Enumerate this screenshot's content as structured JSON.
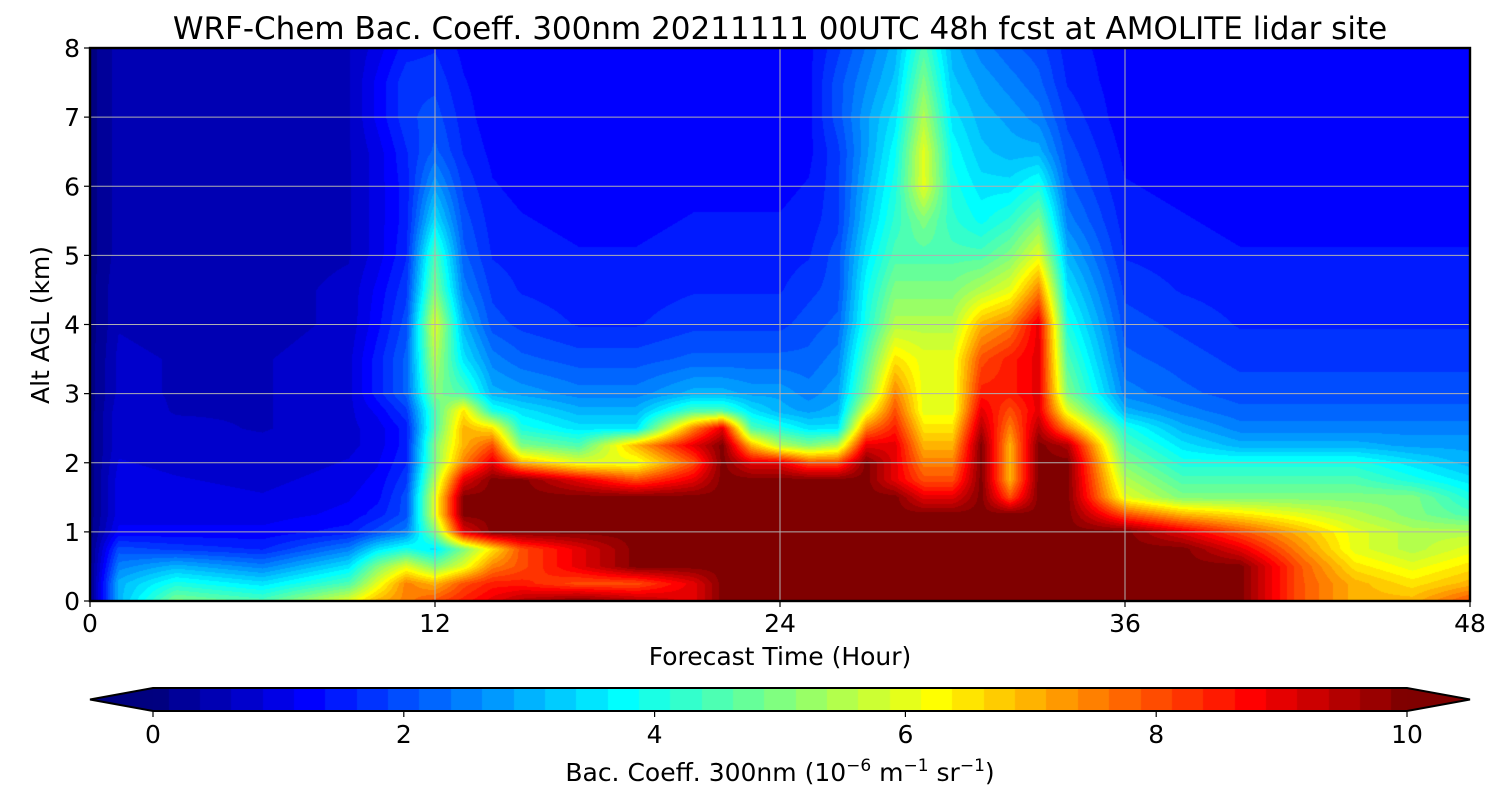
{
  "chart_data": {
    "type": "heatmap",
    "title": "WRF-Chem Bac. Coeff. 300nm  20211111 00UTC 48h fcst at AMOLITE lidar site",
    "xlabel": "Forecast Time (Hour)",
    "ylabel": "Alt AGL (km)",
    "xlim": [
      0,
      48
    ],
    "ylim": [
      0,
      8
    ],
    "xticks": [
      0,
      12,
      24,
      36,
      48
    ],
    "yticks": [
      0,
      1,
      2,
      3,
      4,
      5,
      6,
      7,
      8
    ],
    "grid": true,
    "colormap": "jet",
    "colorbar": {
      "orientation": "horizontal",
      "placement": "bottom",
      "extend": "both",
      "min": 0,
      "max": 10,
      "ticks": [
        0,
        2,
        4,
        6,
        8,
        10
      ],
      "label_main": "Bac. Coeff. 300nm  (10",
      "label_exp1": "−6",
      "label_mid": " m",
      "label_exp2": "−1",
      "label_mid2": " sr",
      "label_exp3": "−1",
      "label_end": ")"
    },
    "x": [
      0,
      1,
      3,
      6,
      9,
      10,
      11,
      12,
      13,
      14,
      15,
      17,
      19,
      21,
      22,
      23,
      24,
      25,
      26,
      27,
      28,
      29,
      30,
      31,
      32,
      33,
      34,
      36,
      38,
      40,
      42,
      44,
      46,
      48
    ],
    "y": [
      0,
      0.25,
      0.5,
      0.75,
      1,
      1.25,
      1.5,
      1.75,
      2,
      2.25,
      2.5,
      2.75,
      3,
      3.5,
      4,
      4.5,
      5,
      5.5,
      6,
      6.5,
      7,
      7.5,
      8
    ],
    "z": [
      [
        0,
        3,
        5,
        4.5,
        6,
        7,
        7.5,
        8,
        8.5,
        9,
        9.5,
        10,
        9.5,
        9,
        10,
        10,
        10,
        10,
        10,
        10,
        10,
        10,
        10,
        10,
        10,
        10,
        10,
        10,
        10,
        10,
        8,
        7,
        7,
        8
      ],
      [
        0,
        3,
        4,
        3.5,
        4.5,
        6,
        7.5,
        7,
        8,
        8.5,
        8.5,
        8,
        8,
        9,
        10,
        10,
        10,
        10,
        10,
        10,
        10,
        10,
        10,
        10,
        10,
        10,
        10,
        10,
        10,
        10,
        8,
        7,
        6.5,
        7
      ],
      [
        0,
        2.5,
        3,
        2.5,
        3.5,
        5,
        6,
        5,
        6,
        7.5,
        8,
        9,
        10,
        10,
        10,
        10,
        10,
        10,
        10,
        10,
        10,
        10,
        10,
        10,
        10,
        10,
        10,
        10,
        10,
        10,
        8,
        6.5,
        6,
        6.5
      ],
      [
        0,
        2,
        1.8,
        1.6,
        2.5,
        3.5,
        4,
        3.5,
        5,
        6.5,
        8,
        9,
        10,
        10,
        10,
        10,
        10,
        10,
        10,
        10,
        10,
        10,
        10,
        10,
        10,
        10,
        10,
        10,
        10,
        9,
        7.5,
        6,
        5.5,
        6
      ],
      [
        0,
        1.2,
        1.2,
        1.2,
        1.5,
        2,
        2.5,
        5,
        9,
        10,
        10,
        10,
        10,
        10,
        10,
        10,
        10,
        10,
        10,
        10,
        10,
        10,
        10,
        10,
        10,
        10,
        10,
        10,
        9,
        8,
        7,
        6,
        5.5,
        5.5
      ],
      [
        0,
        1,
        1,
        1,
        1.2,
        1.5,
        2,
        6,
        10,
        10,
        10,
        10,
        10,
        10,
        10,
        10,
        10,
        10,
        10,
        10,
        10,
        10,
        10,
        10,
        10,
        10,
        10,
        8,
        7,
        6.5,
        6,
        5.5,
        5,
        4.5
      ],
      [
        0,
        1,
        1,
        0.9,
        1.1,
        1.3,
        2,
        6,
        10,
        10,
        10,
        10,
        10,
        10,
        10,
        10,
        10,
        10,
        10,
        10,
        10,
        9,
        9,
        10,
        8,
        10,
        10,
        6,
        5,
        5,
        5,
        5,
        5,
        4
      ],
      [
        0,
        1,
        0.9,
        0.8,
        1,
        1.2,
        1.8,
        5.5,
        9,
        10,
        10,
        9,
        8,
        9,
        10,
        10,
        10,
        10,
        10,
        10,
        9,
        8,
        8,
        10,
        7,
        10,
        10,
        5.5,
        4.5,
        4.5,
        4.5,
        4.5,
        4,
        3.5
      ],
      [
        0,
        0.9,
        0.8,
        0.7,
        0.9,
        1.1,
        1.6,
        5,
        7.5,
        9,
        7,
        6,
        6,
        8,
        10,
        9,
        9,
        8,
        8,
        10,
        9,
        7.5,
        7.5,
        10,
        7,
        10,
        10,
        5,
        4,
        4,
        4,
        4,
        3.5,
        3
      ],
      [
        0,
        0.8,
        0.7,
        0.7,
        0.8,
        1,
        1.5,
        5,
        7,
        8,
        5,
        4.5,
        7,
        9,
        10,
        7,
        5.5,
        5,
        5.5,
        9,
        9,
        7,
        7,
        10,
        7,
        10,
        9.5,
        4.5,
        3.5,
        3,
        3,
        3,
        2.8,
        2.8
      ],
      [
        0,
        0.8,
        0.7,
        0.6,
        0.8,
        1,
        1.5,
        4.5,
        7,
        6.5,
        4,
        3.5,
        3.5,
        7.5,
        9,
        4.5,
        4,
        3.5,
        3.5,
        7.5,
        8.5,
        6.5,
        6.5,
        9.5,
        7.5,
        9.5,
        7.5,
        4,
        3,
        2.5,
        2.5,
        2.5,
        2.5,
        2.5
      ],
      [
        0,
        0.8,
        0.6,
        0.6,
        0.8,
        1.2,
        1.8,
        4.5,
        6.5,
        4,
        3.5,
        3,
        3,
        4.5,
        4.5,
        3.5,
        3,
        2.8,
        3,
        6,
        8,
        6,
        6,
        9,
        8,
        9,
        6,
        3,
        2.5,
        2.2,
        2.2,
        2.2,
        2.2,
        2.2
      ],
      [
        0,
        0.7,
        0.6,
        0.6,
        0.8,
        1.5,
        2.2,
        5,
        4.5,
        3,
        2.8,
        2.5,
        2.5,
        3,
        3,
        2.8,
        2.8,
        2.5,
        2.8,
        5,
        7.5,
        6,
        6,
        8.5,
        8.5,
        9,
        5,
        2.5,
        2.2,
        2,
        2,
        2,
        2,
        2
      ],
      [
        0,
        0.7,
        0.6,
        0.6,
        0.8,
        1.5,
        2.2,
        5.5,
        3.5,
        2.5,
        2.2,
        2,
        2,
        2.2,
        2.2,
        2.2,
        2.2,
        2.2,
        2.5,
        4.5,
        6.5,
        6,
        6,
        8,
        8.5,
        9,
        4.5,
        2.2,
        2,
        1.8,
        1.8,
        1.8,
        1.8,
        1.8
      ],
      [
        0,
        0.6,
        0.5,
        0.5,
        0.7,
        1.3,
        2,
        6,
        3,
        2,
        1.8,
        1.6,
        1.6,
        1.8,
        1.8,
        1.8,
        1.8,
        2,
        2.2,
        4,
        5.5,
        5.5,
        5.5,
        7,
        7.5,
        9,
        4,
        2,
        1.8,
        1.6,
        1.6,
        1.6,
        1.6,
        1.6
      ],
      [
        0,
        0.6,
        0.5,
        0.5,
        0.7,
        1.2,
        1.8,
        5,
        2.5,
        1.8,
        1.6,
        1.5,
        1.5,
        1.6,
        1.6,
        1.6,
        1.6,
        1.8,
        2,
        3.8,
        5,
        5,
        5,
        5.5,
        6,
        7.5,
        3.5,
        1.8,
        1.6,
        1.5,
        1.5,
        1.5,
        1.5,
        1.5
      ],
      [
        0,
        0.5,
        0.5,
        0.5,
        0.6,
        1,
        1.6,
        4.5,
        2.2,
        1.6,
        1.5,
        1.4,
        1.4,
        1.5,
        1.5,
        1.5,
        1.5,
        1.6,
        2,
        3.5,
        4.5,
        4.5,
        4.5,
        4.5,
        5,
        6,
        3,
        1.6,
        1.5,
        1.4,
        1.4,
        1.4,
        1.4,
        1.4
      ],
      [
        0,
        0.5,
        0.5,
        0.5,
        0.6,
        1,
        1.5,
        3.5,
        2,
        1.5,
        1.4,
        1.3,
        1.3,
        1.4,
        1.4,
        1.4,
        1.4,
        1.5,
        1.8,
        3.2,
        4.2,
        5,
        4.2,
        3.8,
        4.2,
        5,
        2.5,
        1.5,
        1.4,
        1.3,
        1.3,
        1.3,
        1.3,
        1.3
      ],
      [
        0,
        0.5,
        0.5,
        0.5,
        0.6,
        1,
        1.5,
        2.8,
        1.8,
        1.4,
        1.3,
        1.2,
        1.2,
        1.3,
        1.3,
        1.3,
        1.3,
        1.4,
        1.8,
        3,
        4,
        6,
        4,
        3.5,
        3.5,
        4,
        2.2,
        1.4,
        1.3,
        1.2,
        1.2,
        1.2,
        1.2,
        1.2
      ],
      [
        0,
        0.5,
        0.5,
        0.5,
        0.6,
        1,
        1.6,
        2.2,
        1.6,
        1.3,
        1.2,
        1.2,
        1.2,
        1.2,
        1.2,
        1.2,
        1.2,
        1.3,
        1.8,
        2.8,
        3.8,
        6,
        3.8,
        3.2,
        3,
        3,
        2,
        1.3,
        1.2,
        1.2,
        1.2,
        1.2,
        1.2,
        1.2
      ],
      [
        0,
        0.5,
        0.5,
        0.5,
        0.6,
        1.2,
        1.8,
        2,
        1.5,
        1.2,
        1.2,
        1.2,
        1.2,
        1.2,
        1.2,
        1.2,
        1.2,
        1.3,
        2,
        2.8,
        3.5,
        5.5,
        3.5,
        3,
        2.8,
        2.5,
        1.8,
        1.2,
        1.2,
        1.2,
        1.2,
        1.2,
        1.2,
        1.2
      ],
      [
        0,
        0.5,
        0.5,
        0.5,
        0.6,
        1.2,
        1.8,
        1.8,
        1.4,
        1.2,
        1.2,
        1.2,
        1.2,
        1.2,
        1.2,
        1.2,
        1.2,
        1.3,
        2,
        2.6,
        3.2,
        5,
        3.2,
        2.8,
        2.5,
        2.2,
        1.6,
        1.2,
        1.2,
        1.2,
        1.2,
        1.2,
        1.2,
        1.2
      ],
      [
        0,
        0.5,
        0.5,
        0.5,
        0.6,
        1,
        1.5,
        1.6,
        1.3,
        1.2,
        1.2,
        1.2,
        1.2,
        1.2,
        1.2,
        1.2,
        1.2,
        1.3,
        1.8,
        2.4,
        3,
        4.5,
        3,
        2.5,
        2.2,
        2,
        1.5,
        1.2,
        1.2,
        1.2,
        1.2,
        1.2,
        1.2,
        1.2
      ]
    ]
  }
}
